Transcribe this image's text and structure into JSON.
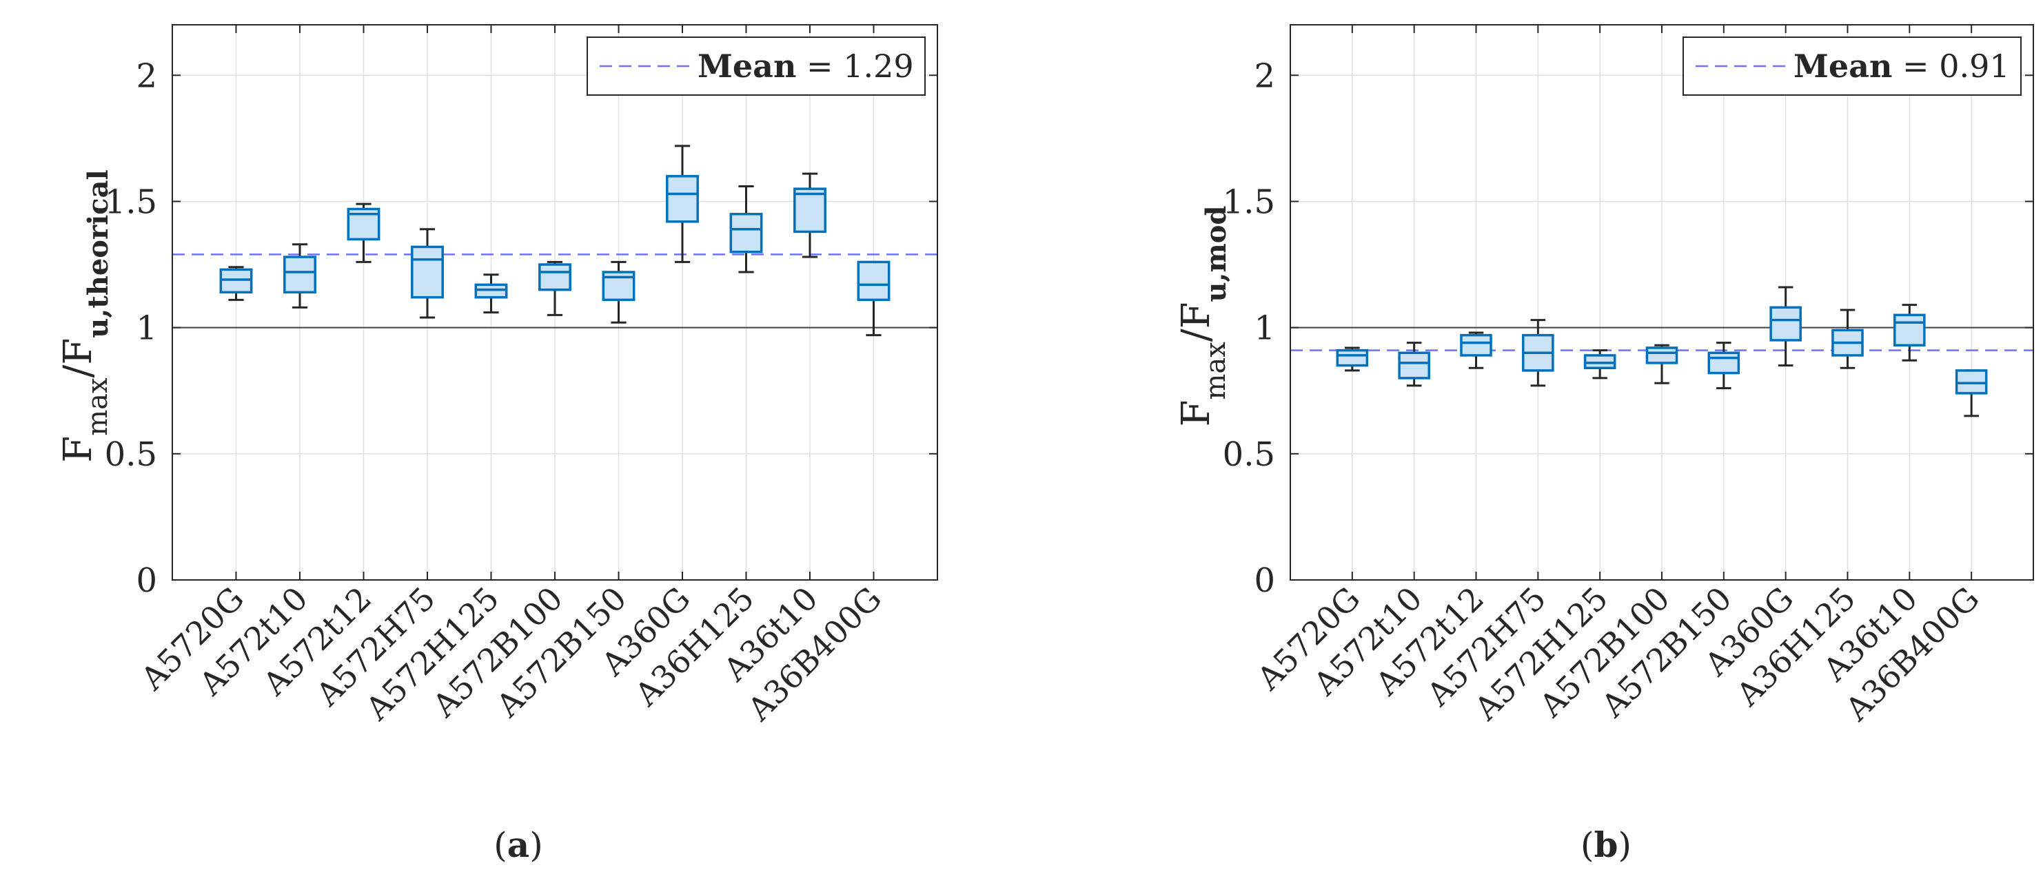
{
  "figure": {
    "panels": [
      "(a)",
      "(b)"
    ]
  },
  "colors": {
    "box_edge": "#0072BD",
    "box_fill": "#C9E2F5",
    "whisker": "#262626",
    "mean_line": "#7070FF",
    "grid": "#E0E0E0",
    "ref_line": "#404040"
  },
  "chart_data": [
    {
      "type": "box",
      "panel_label": "(a)",
      "title": "",
      "xlabel": "",
      "ylabel_main": "F",
      "ylabel_sub1": "max",
      "ylabel_sep": "/F",
      "ylabel_sub2": "u,theorical",
      "ylim": [
        0,
        2.2
      ],
      "yticks": [
        0,
        0.5,
        1,
        1.5,
        2
      ],
      "ytick_labels": [
        "0",
        "0.5",
        "1",
        "1.5",
        "2"
      ],
      "grid": true,
      "reference_line": 1,
      "mean": 1.29,
      "legend": {
        "location": "top-right",
        "label": "Mean",
        "eq": "=",
        "value": "1.29"
      },
      "categories": [
        "A5720G",
        "A572t10",
        "A572t12",
        "A572H75",
        "A572H125",
        "A572B100",
        "A572B150",
        "A360G",
        "A36H125",
        "A36t10",
        "A36B400G"
      ],
      "boxes": [
        {
          "min": 1.11,
          "q1": 1.14,
          "median": 1.19,
          "q3": 1.23,
          "max": 1.24
        },
        {
          "min": 1.08,
          "q1": 1.14,
          "median": 1.22,
          "q3": 1.28,
          "max": 1.33
        },
        {
          "min": 1.26,
          "q1": 1.35,
          "median": 1.45,
          "q3": 1.47,
          "max": 1.49
        },
        {
          "min": 1.04,
          "q1": 1.12,
          "median": 1.27,
          "q3": 1.32,
          "max": 1.39
        },
        {
          "min": 1.06,
          "q1": 1.12,
          "median": 1.15,
          "q3": 1.17,
          "max": 1.21
        },
        {
          "min": 1.05,
          "q1": 1.15,
          "median": 1.22,
          "q3": 1.25,
          "max": 1.26
        },
        {
          "min": 1.02,
          "q1": 1.11,
          "median": 1.2,
          "q3": 1.22,
          "max": 1.26
        },
        {
          "min": 1.26,
          "q1": 1.42,
          "median": 1.53,
          "q3": 1.6,
          "max": 1.72
        },
        {
          "min": 1.22,
          "q1": 1.3,
          "median": 1.39,
          "q3": 1.45,
          "max": 1.56
        },
        {
          "min": 1.28,
          "q1": 1.38,
          "median": 1.53,
          "q3": 1.55,
          "max": 1.61
        },
        {
          "min": 0.97,
          "q1": 1.11,
          "median": 1.17,
          "q3": 1.26,
          "max": 1.26
        }
      ]
    },
    {
      "type": "box",
      "panel_label": "(b)",
      "title": "",
      "xlabel": "",
      "ylabel_main": "F",
      "ylabel_sub1": "max",
      "ylabel_sep": "/F",
      "ylabel_sub2": "u,mod",
      "ylim": [
        0,
        2.2
      ],
      "yticks": [
        0,
        0.5,
        1,
        1.5,
        2
      ],
      "ytick_labels": [
        "0",
        "0.5",
        "1",
        "1.5",
        "2"
      ],
      "grid": true,
      "reference_line": 1,
      "mean": 0.91,
      "legend": {
        "location": "top-right",
        "label": "Mean",
        "eq": "=",
        "value": "0.91"
      },
      "categories": [
        "A5720G",
        "A572t10",
        "A572t12",
        "A572H75",
        "A572H125",
        "A572B100",
        "A572B150",
        "A360G",
        "A36H125",
        "A36t10",
        "A36B400G"
      ],
      "boxes": [
        {
          "min": 0.83,
          "q1": 0.85,
          "median": 0.89,
          "q3": 0.91,
          "max": 0.92
        },
        {
          "min": 0.77,
          "q1": 0.8,
          "median": 0.86,
          "q3": 0.9,
          "max": 0.94
        },
        {
          "min": 0.84,
          "q1": 0.89,
          "median": 0.94,
          "q3": 0.97,
          "max": 0.98
        },
        {
          "min": 0.77,
          "q1": 0.83,
          "median": 0.9,
          "q3": 0.97,
          "max": 1.03
        },
        {
          "min": 0.8,
          "q1": 0.84,
          "median": 0.86,
          "q3": 0.89,
          "max": 0.91
        },
        {
          "min": 0.78,
          "q1": 0.86,
          "median": 0.9,
          "q3": 0.92,
          "max": 0.93
        },
        {
          "min": 0.76,
          "q1": 0.82,
          "median": 0.88,
          "q3": 0.9,
          "max": 0.94
        },
        {
          "min": 0.85,
          "q1": 0.95,
          "median": 1.03,
          "q3": 1.08,
          "max": 1.16
        },
        {
          "min": 0.84,
          "q1": 0.89,
          "median": 0.94,
          "q3": 0.99,
          "max": 1.07
        },
        {
          "min": 0.87,
          "q1": 0.93,
          "median": 1.02,
          "q3": 1.05,
          "max": 1.09
        },
        {
          "min": 0.65,
          "q1": 0.74,
          "median": 0.78,
          "q3": 0.83,
          "max": 0.83
        }
      ]
    }
  ]
}
